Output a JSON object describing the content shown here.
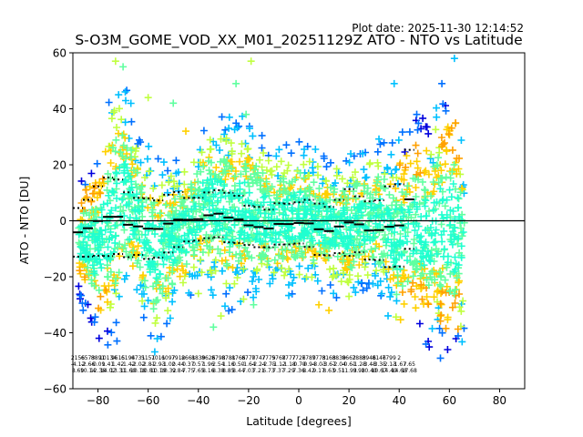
{
  "plot_date": "Plot date: 2025-11-30 12:14:52",
  "chart_data": {
    "type": "scatter",
    "title": "S-O3M_GOME_VOD_XX_M01_20251129Z ATO - NTO vs Latitude",
    "xlabel": "Latitude [degrees]",
    "ylabel": "ATO - NTO [DU]",
    "xlim": [
      -90,
      90
    ],
    "ylim": [
      -60,
      60
    ],
    "xticks": [
      -80,
      -60,
      -40,
      -20,
      0,
      20,
      40,
      60,
      80
    ],
    "yticks": [
      -60,
      -40,
      -20,
      0,
      20,
      40,
      60
    ],
    "grid": false,
    "zero_line": true,
    "marker": "+",
    "density_colors": [
      "#0000dd",
      "#0070ff",
      "#00c0ff",
      "#20ffd0",
      "#60ffa0",
      "#c0ff40",
      "#ffd000",
      "#ffa000"
    ],
    "envelope": [
      {
        "lat": -88,
        "lo": -28,
        "hi": 14
      },
      {
        "lat": -80,
        "lo": -44,
        "hi": 24
      },
      {
        "lat": -74,
        "lo": -46,
        "hi": 50
      },
      {
        "lat": -70,
        "lo": -40,
        "hi": 56
      },
      {
        "lat": -64,
        "lo": -30,
        "hi": 32
      },
      {
        "lat": -58,
        "lo": -50,
        "hi": 26
      },
      {
        "lat": -52,
        "lo": -38,
        "hi": 22
      },
      {
        "lat": -44,
        "lo": -30,
        "hi": 25
      },
      {
        "lat": -36,
        "lo": -26,
        "hi": 40
      },
      {
        "lat": -28,
        "lo": -34,
        "hi": 38
      },
      {
        "lat": -20,
        "lo": -30,
        "hi": 38
      },
      {
        "lat": -10,
        "lo": -28,
        "hi": 26
      },
      {
        "lat": 0,
        "lo": -26,
        "hi": 30
      },
      {
        "lat": 10,
        "lo": -26,
        "hi": 24
      },
      {
        "lat": 20,
        "lo": -30,
        "hi": 24
      },
      {
        "lat": 28,
        "lo": -26,
        "hi": 28
      },
      {
        "lat": 34,
        "lo": -30,
        "hi": 30
      },
      {
        "lat": 40,
        "lo": -46,
        "hi": 30
      },
      {
        "lat": 46,
        "lo": -42,
        "hi": 38
      },
      {
        "lat": 52,
        "lo": -46,
        "hi": 36
      },
      {
        "lat": 58,
        "lo": -52,
        "hi": 50
      },
      {
        "lat": 62,
        "lo": -56,
        "hi": 52
      },
      {
        "lat": 66,
        "lo": -40,
        "hi": 20
      }
    ],
    "bin_stats": [
      {
        "lat": -88,
        "n": "2156",
        "mean": "-4.12",
        "std": "8.69"
      },
      {
        "lat": -84,
        "n": "6573",
        "mean": "-2.66",
        "std": "10.14"
      },
      {
        "lat": -80,
        "n": "8891",
        "mean": "-0.09",
        "std": "12.38"
      },
      {
        "lat": -76,
        "n": "10134",
        "mean": "1.41",
        "std": "14.02"
      },
      {
        "lat": -72,
        "n": "9615",
        "mean": "1.42",
        "std": "13.31"
      },
      {
        "lat": -68,
        "n": "6194",
        "mean": "-1.42",
        "std": "11.60"
      },
      {
        "lat": -64,
        "n": "6731",
        "mean": "-2.02",
        "std": "10.18"
      },
      {
        "lat": -60,
        "n": "5151",
        "mean": "-2.81",
        "std": "10.81"
      },
      {
        "lat": -56,
        "n": "7011",
        "mean": "-2.93",
        "std": "10.19"
      },
      {
        "lat": -52,
        "n": "6097",
        "mean": "-1.02",
        "std": "10.32"
      },
      {
        "lat": -48,
        "n": "7912",
        "mean": "0.44",
        "std": "9.84"
      },
      {
        "lat": -44,
        "n": "8661",
        "mean": "0.37",
        "std": "7.75"
      },
      {
        "lat": -40,
        "n": "8839",
        "mean": "0.57",
        "std": "7.65"
      },
      {
        "lat": -36,
        "n": "8626",
        "mean": "1.96",
        "std": "8.16"
      },
      {
        "lat": -32,
        "n": "8798",
        "mean": "2.54",
        "std": "8.38"
      },
      {
        "lat": -28,
        "n": "8781",
        "mean": "1.16",
        "std": "8.85"
      },
      {
        "lat": -24,
        "n": "8766",
        "mean": "0.50",
        "std": "8.44"
      },
      {
        "lat": -20,
        "n": "8770",
        "mean": "-1.64",
        "std": "7.03"
      },
      {
        "lat": -16,
        "n": "7747",
        "mean": "-2.24",
        "std": "7.21"
      },
      {
        "lat": -12,
        "n": "7779",
        "mean": "-2.75",
        "std": "6.73"
      },
      {
        "lat": -8,
        "n": "5768",
        "mean": "-1.12",
        "std": "7.37"
      },
      {
        "lat": -4,
        "n": "7777",
        "mean": "-1.18",
        "std": "7.29"
      },
      {
        "lat": 0,
        "n": "7726",
        "mean": "-0.79",
        "std": "7.36"
      },
      {
        "lat": 4,
        "n": "7789",
        "mean": "-0.94",
        "std": "8.42"
      },
      {
        "lat": 8,
        "n": "7773",
        "mean": "-3.03",
        "std": "9.17"
      },
      {
        "lat": 12,
        "n": "8163",
        "mean": "-3.67",
        "std": "8.63"
      },
      {
        "lat": 16,
        "n": "8839",
        "mean": "-2.04",
        "std": "9.51"
      },
      {
        "lat": 20,
        "n": "8662",
        "mean": "-0.61",
        "std": "11.93"
      },
      {
        "lat": 24,
        "n": "7883",
        "mean": "-1.28",
        "std": "9.98"
      },
      {
        "lat": 28,
        "n": "8946",
        "mean": "-3.48",
        "std": "10.40"
      },
      {
        "lat": 32,
        "n": "8146",
        "mean": "-3.35",
        "std": "10.67"
      },
      {
        "lat": 36,
        "n": "7799",
        "mean": "-2.13",
        "std": "14.40"
      },
      {
        "lat": 40,
        "n": "2",
        "mean": "-1.67",
        "std": "14.68"
      },
      {
        "lat": 44,
        "n": "",
        "mean": "7.65",
        "std": "17.68"
      }
    ]
  }
}
